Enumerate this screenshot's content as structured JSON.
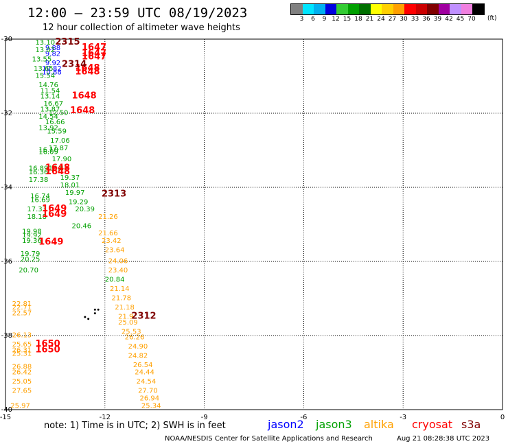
{
  "title": "12:00 — 23:59 UTC 08/19/2023",
  "subtitle": "12 hour collection of altimeter wave heights",
  "colorbar": {
    "colors": [
      "#808080",
      "#00e5ff",
      "#00b0f0",
      "#0000e0",
      "#33cc33",
      "#00a000",
      "#007000",
      "#ffff00",
      "#ffd000",
      "#ffa000",
      "#ff0000",
      "#cc0000",
      "#800000",
      "#a000a0",
      "#c090ff",
      "#f080e0",
      "#000000"
    ],
    "labels": [
      "3",
      "6",
      "9",
      "12",
      "15",
      "18",
      "21",
      "24",
      "27",
      "30",
      "33",
      "36",
      "39",
      "42",
      "45",
      "70"
    ],
    "unit": "(ft)"
  },
  "note": "note: 1) Time is in UTC; 2) SWH is in feet",
  "credit": "NOAA/NESDIS Center for Satellite Applications and Research",
  "timestamp": "Aug 21 08:28:38 UTC 2023",
  "legend": [
    {
      "name": "jason2",
      "color": "#0000ff"
    },
    {
      "name": "jason3",
      "color": "#00a000"
    },
    {
      "name": "altika",
      "color": "#ffa000"
    },
    {
      "name": "cryosat",
      "color": "#ff0000"
    },
    {
      "name": "s3a",
      "color": "#800000"
    }
  ],
  "chart_data": {
    "type": "scatter",
    "title": "12:00 — 23:59 UTC 08/19/2023",
    "subtitle": "12 hour collection of altimeter wave heights",
    "xlim": [
      -15,
      0
    ],
    "ylim": [
      -40,
      -30
    ],
    "xticks": [
      "-15",
      "-12",
      "-9",
      "-6",
      "-3",
      "0"
    ],
    "yticks": [
      "-30",
      "-32",
      "-34",
      "-36",
      "-38",
      "-40"
    ],
    "grid": true,
    "coastline": [
      [
        -12.3,
        -37.3
      ],
      [
        -12.2,
        -37.3
      ],
      [
        -12.3,
        -37.4
      ],
      [
        -12.6,
        -37.5
      ],
      [
        -12.5,
        -37.55
      ]
    ],
    "series": [
      {
        "name": "jason2",
        "color": "#0000ff",
        "points": [
          {
            "x": -13.8,
            "y": -30.3,
            "label": "9.88"
          },
          {
            "x": -13.8,
            "y": -30.45,
            "label": "9.82"
          },
          {
            "x": -13.8,
            "y": -30.7,
            "label": "9.92"
          },
          {
            "x": -13.9,
            "y": -30.85,
            "label": "10.82"
          },
          {
            "x": -13.9,
            "y": -30.95,
            "label": "10.88"
          }
        ]
      },
      {
        "name": "jason3",
        "color": "#00a000",
        "points": [
          {
            "x": -14.1,
            "y": -30.15,
            "label": "13.10"
          },
          {
            "x": -14.1,
            "y": -30.35,
            "label": "13.02"
          },
          {
            "x": -14.2,
            "y": -30.6,
            "label": "13.55"
          },
          {
            "x": -14.15,
            "y": -30.85,
            "label": "13.65"
          },
          {
            "x": -14.1,
            "y": -31.05,
            "label": "15.54"
          },
          {
            "x": -14.0,
            "y": -31.3,
            "label": "14.76"
          },
          {
            "x": -13.95,
            "y": -31.45,
            "label": "11.54"
          },
          {
            "x": -13.95,
            "y": -31.6,
            "label": "13.14"
          },
          {
            "x": -13.85,
            "y": -31.8,
            "label": "16.67"
          },
          {
            "x": -13.95,
            "y": -31.95,
            "label": "13.87"
          },
          {
            "x": -13.7,
            "y": -32.05,
            "label": "12.50"
          },
          {
            "x": -14.0,
            "y": -32.15,
            "label": "14.54"
          },
          {
            "x": -13.8,
            "y": -32.3,
            "label": "16.66"
          },
          {
            "x": -14.0,
            "y": -32.45,
            "label": "13.92"
          },
          {
            "x": -13.75,
            "y": -32.55,
            "label": "15.59"
          },
          {
            "x": -13.65,
            "y": -32.8,
            "label": "17.06"
          },
          {
            "x": -14.0,
            "y": -33.05,
            "label": "16.10"
          },
          {
            "x": -13.7,
            "y": -33.0,
            "label": "17.87"
          },
          {
            "x": -14.0,
            "y": -33.1,
            "label": "16.09"
          },
          {
            "x": -13.6,
            "y": -33.3,
            "label": "17.90"
          },
          {
            "x": -14.3,
            "y": -33.55,
            "label": "16.89"
          },
          {
            "x": -14.3,
            "y": -33.65,
            "label": "16.36"
          },
          {
            "x": -13.7,
            "y": -33.55,
            "label": "18.61"
          },
          {
            "x": -13.35,
            "y": -33.8,
            "label": "19.37"
          },
          {
            "x": -14.3,
            "y": -33.85,
            "label": "17.38"
          },
          {
            "x": -13.35,
            "y": -34.0,
            "label": "18.01"
          },
          {
            "x": -13.2,
            "y": -34.2,
            "label": "19.97"
          },
          {
            "x": -14.25,
            "y": -34.3,
            "label": "16.74"
          },
          {
            "x": -14.25,
            "y": -34.4,
            "label": "16.69"
          },
          {
            "x": -13.1,
            "y": -34.45,
            "label": "19.29"
          },
          {
            "x": -14.35,
            "y": -34.65,
            "label": "17.33"
          },
          {
            "x": -12.9,
            "y": -34.65,
            "label": "20.39"
          },
          {
            "x": -14.35,
            "y": -34.85,
            "label": "18.18"
          },
          {
            "x": -13.0,
            "y": -35.1,
            "label": "20.46"
          },
          {
            "x": -14.5,
            "y": -35.25,
            "label": "19.98"
          },
          {
            "x": -14.5,
            "y": -35.35,
            "label": "19.92"
          },
          {
            "x": -14.5,
            "y": -35.5,
            "label": "19.36"
          },
          {
            "x": -14.55,
            "y": -35.85,
            "label": "19.79"
          },
          {
            "x": -14.55,
            "y": -36.0,
            "label": "20.25"
          },
          {
            "x": -14.6,
            "y": -36.3,
            "label": "20.70"
          },
          {
            "x": -12.0,
            "y": -36.55,
            "label": "20.84"
          }
        ]
      },
      {
        "name": "altika",
        "color": "#ffa000",
        "points": [
          {
            "x": -12.2,
            "y": -34.85,
            "label": "21.26"
          },
          {
            "x": -12.2,
            "y": -35.3,
            "label": "21.66"
          },
          {
            "x": -12.1,
            "y": -35.5,
            "label": "23.42"
          },
          {
            "x": -12.0,
            "y": -35.75,
            "label": "23.64"
          },
          {
            "x": -11.9,
            "y": -36.05,
            "label": "24.06"
          },
          {
            "x": -11.9,
            "y": -36.3,
            "label": "23.40"
          },
          {
            "x": -11.85,
            "y": -36.8,
            "label": "21.14"
          },
          {
            "x": -11.8,
            "y": -37.05,
            "label": "21.78"
          },
          {
            "x": -14.8,
            "y": -37.2,
            "label": "22.81"
          },
          {
            "x": -14.8,
            "y": -37.3,
            "label": "22.71"
          },
          {
            "x": -14.8,
            "y": -37.45,
            "label": "22.57"
          },
          {
            "x": -11.7,
            "y": -37.3,
            "label": "21.18"
          },
          {
            "x": -11.6,
            "y": -37.55,
            "label": "21.9"
          },
          {
            "x": -11.6,
            "y": -37.7,
            "label": "25.09"
          },
          {
            "x": -11.5,
            "y": -37.95,
            "label": "25.53"
          },
          {
            "x": -14.8,
            "y": -38.05,
            "label": "26.13"
          },
          {
            "x": -11.4,
            "y": -38.1,
            "label": "26.26"
          },
          {
            "x": -14.8,
            "y": -38.3,
            "label": "25.65"
          },
          {
            "x": -14.8,
            "y": -38.45,
            "label": "26.31"
          },
          {
            "x": -14.8,
            "y": -38.55,
            "label": "25.31"
          },
          {
            "x": -11.3,
            "y": -38.35,
            "label": "24.90"
          },
          {
            "x": -11.3,
            "y": -38.6,
            "label": "24.82"
          },
          {
            "x": -11.15,
            "y": -38.85,
            "label": "26.54"
          },
          {
            "x": -14.8,
            "y": -38.9,
            "label": "26.88"
          },
          {
            "x": -14.8,
            "y": -39.05,
            "label": "26.42"
          },
          {
            "x": -11.1,
            "y": -39.05,
            "label": "24.44"
          },
          {
            "x": -14.8,
            "y": -39.3,
            "label": "25.05"
          },
          {
            "x": -11.05,
            "y": -39.3,
            "label": "24.54"
          },
          {
            "x": -14.8,
            "y": -39.55,
            "label": "27.65"
          },
          {
            "x": -11.0,
            "y": -39.55,
            "label": "27.70"
          },
          {
            "x": -10.95,
            "y": -39.75,
            "label": "26.94"
          },
          {
            "x": -14.85,
            "y": -39.95,
            "label": "25.97"
          },
          {
            "x": -10.9,
            "y": -39.95,
            "label": "25.34"
          }
        ]
      },
      {
        "name": "cryosat",
        "color": "#ff0000",
        "points": [
          {
            "x": -12.7,
            "y": -30.3,
            "label": "1647"
          },
          {
            "x": -12.7,
            "y": -30.45,
            "label": "1647"
          },
          {
            "x": -12.7,
            "y": -30.55,
            "label": "1647"
          },
          {
            "x": -12.9,
            "y": -30.85,
            "label": "1648"
          },
          {
            "x": -12.9,
            "y": -30.95,
            "label": "1648"
          },
          {
            "x": -13.0,
            "y": -31.6,
            "label": "1648"
          },
          {
            "x": -13.05,
            "y": -32.0,
            "label": "1648"
          },
          {
            "x": -13.8,
            "y": -33.55,
            "label": "1648"
          },
          {
            "x": -13.8,
            "y": -33.65,
            "label": "1648"
          },
          {
            "x": -13.9,
            "y": -34.65,
            "label": "1649"
          },
          {
            "x": -13.9,
            "y": -34.8,
            "label": "1649"
          },
          {
            "x": -14.0,
            "y": -35.55,
            "label": "1649"
          },
          {
            "x": -14.1,
            "y": -38.3,
            "label": "1650"
          },
          {
            "x": -14.1,
            "y": -38.45,
            "label": "1650"
          }
        ]
      },
      {
        "name": "s3a",
        "color": "#800000",
        "points": [
          {
            "x": -13.5,
            "y": -30.15,
            "label": "2315"
          },
          {
            "x": -13.3,
            "y": -30.75,
            "label": "2314"
          },
          {
            "x": -12.1,
            "y": -34.25,
            "label": "2313"
          },
          {
            "x": -11.2,
            "y": -37.55,
            "label": "2312"
          }
        ]
      }
    ]
  }
}
